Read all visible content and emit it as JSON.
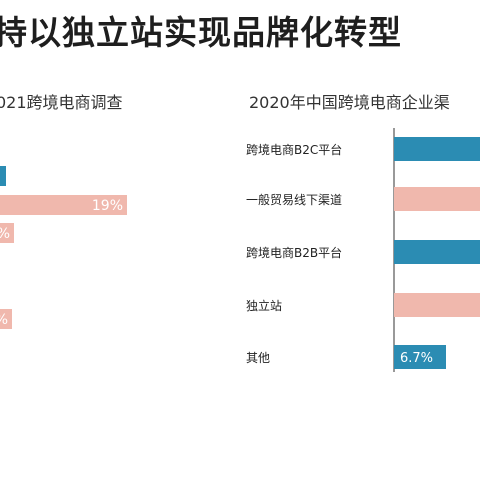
{
  "header": {
    "headline": "持以独立站实现品牌化转型"
  },
  "chart_data": [
    {
      "type": "bar",
      "title": "021跨境电商调查",
      "orientation": "horizontal",
      "categories": [
        "",
        "",
        "",
        "",
        ""
      ],
      "series": [
        {
          "values": [
            null,
            19,
            null,
            null,
            null
          ],
          "data_labels": [
            "",
            "19%",
            "%",
            "",
            "%"
          ]
        }
      ],
      "colors": [
        "#2b8cb3",
        "#f0b8ad",
        "#f0b8ad",
        "#f0b8ad",
        "#f0b8ad"
      ],
      "truncated": "left"
    },
    {
      "type": "bar",
      "title": "2020年中国跨境电商企业渠",
      "orientation": "horizontal",
      "categories": [
        "跨境电商B2C平台",
        "一般贸易线下渠道",
        "跨境电商B2B平台",
        "独立站",
        "其他"
      ],
      "series": [
        {
          "values": [
            null,
            null,
            null,
            null,
            6.7
          ],
          "data_labels": [
            "",
            "",
            "",
            "",
            "6.7%"
          ]
        }
      ],
      "colors": [
        "#2b8cb3",
        "#f0b8ad",
        "#2b8cb3",
        "#f0b8ad",
        "#2b8cb3"
      ],
      "truncated": "right"
    }
  ]
}
